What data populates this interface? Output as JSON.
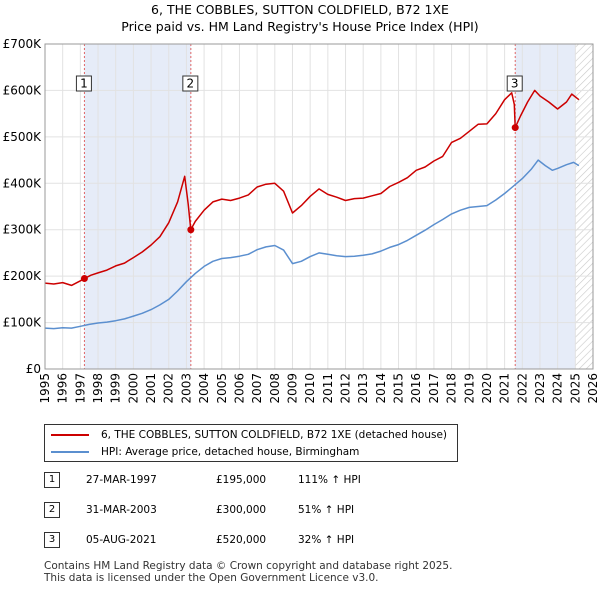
{
  "chart_data": {
    "type": "line",
    "title": "6, THE COBBLES, SUTTON COLDFIELD, B72 1XE",
    "subtitle": "Price paid vs. HM Land Registry's House Price Index (HPI)",
    "x_range": [
      1995,
      2026
    ],
    "ylim": [
      0,
      700000
    ],
    "y_ticks": [
      {
        "value": 0,
        "label": "£0"
      },
      {
        "value": 100000,
        "label": "£100K"
      },
      {
        "value": 200000,
        "label": "£200K"
      },
      {
        "value": 300000,
        "label": "£300K"
      },
      {
        "value": 400000,
        "label": "£400K"
      },
      {
        "value": 500000,
        "label": "£500K"
      },
      {
        "value": 600000,
        "label": "£600K"
      },
      {
        "value": 700000,
        "label": "£700K"
      }
    ],
    "x_ticks": [
      "1995",
      "1996",
      "1997",
      "1998",
      "1999",
      "2000",
      "2001",
      "2002",
      "2003",
      "2004",
      "2005",
      "2006",
      "2007",
      "2008",
      "2009",
      "2010",
      "2011",
      "2012",
      "2013",
      "2014",
      "2015",
      "2016",
      "2017",
      "2018",
      "2019",
      "2020",
      "2021",
      "2022",
      "2023",
      "2024",
      "2025",
      "2026"
    ],
    "grid": true,
    "shaded_periods": [
      {
        "from": 1997.23,
        "to": 2003.25
      },
      {
        "from": 2021.6,
        "to": 2025.0
      }
    ],
    "hatched_from": 2025.0,
    "series": [
      {
        "name": "6, THE COBBLES, SUTTON COLDFIELD, B72 1XE (detached house)",
        "color": "#cc0000",
        "points": [
          [
            1995.0,
            185000
          ],
          [
            1995.5,
            183000
          ],
          [
            1996.0,
            186000
          ],
          [
            1996.5,
            180000
          ],
          [
            1997.0,
            190000
          ],
          [
            1997.23,
            195000
          ],
          [
            1997.6,
            202000
          ],
          [
            1998.0,
            207000
          ],
          [
            1998.5,
            213000
          ],
          [
            1999.0,
            222000
          ],
          [
            1999.5,
            228000
          ],
          [
            2000.0,
            240000
          ],
          [
            2000.5,
            252000
          ],
          [
            2001.0,
            267000
          ],
          [
            2001.5,
            285000
          ],
          [
            2002.0,
            315000
          ],
          [
            2002.5,
            360000
          ],
          [
            2002.9,
            415000
          ],
          [
            2003.1,
            355000
          ],
          [
            2003.25,
            300000
          ],
          [
            2003.5,
            318000
          ],
          [
            2004.0,
            342000
          ],
          [
            2004.5,
            360000
          ],
          [
            2005.0,
            366000
          ],
          [
            2005.5,
            363000
          ],
          [
            2006.0,
            368000
          ],
          [
            2006.5,
            375000
          ],
          [
            2007.0,
            392000
          ],
          [
            2007.5,
            398000
          ],
          [
            2008.0,
            400000
          ],
          [
            2008.5,
            383000
          ],
          [
            2009.0,
            336000
          ],
          [
            2009.5,
            352000
          ],
          [
            2010.0,
            372000
          ],
          [
            2010.5,
            388000
          ],
          [
            2011.0,
            376000
          ],
          [
            2011.5,
            370000
          ],
          [
            2012.0,
            363000
          ],
          [
            2012.5,
            367000
          ],
          [
            2013.0,
            368000
          ],
          [
            2013.5,
            373000
          ],
          [
            2014.0,
            378000
          ],
          [
            2014.5,
            393000
          ],
          [
            2015.0,
            402000
          ],
          [
            2015.5,
            412000
          ],
          [
            2016.0,
            428000
          ],
          [
            2016.5,
            435000
          ],
          [
            2017.0,
            448000
          ],
          [
            2017.5,
            458000
          ],
          [
            2018.0,
            488000
          ],
          [
            2018.5,
            497000
          ],
          [
            2019.0,
            512000
          ],
          [
            2019.5,
            527000
          ],
          [
            2020.0,
            528000
          ],
          [
            2020.5,
            550000
          ],
          [
            2021.0,
            580000
          ],
          [
            2021.4,
            595000
          ],
          [
            2021.55,
            570000
          ],
          [
            2021.6,
            520000
          ],
          [
            2021.9,
            545000
          ],
          [
            2022.3,
            575000
          ],
          [
            2022.7,
            600000
          ],
          [
            2023.0,
            588000
          ],
          [
            2023.5,
            575000
          ],
          [
            2024.0,
            560000
          ],
          [
            2024.5,
            575000
          ],
          [
            2024.8,
            592000
          ],
          [
            2025.2,
            580000
          ]
        ]
      },
      {
        "name": "HPI: Average price, detached house, Birmingham",
        "color": "#5b8fcf",
        "points": [
          [
            1995.0,
            88000
          ],
          [
            1995.5,
            87000
          ],
          [
            1996.0,
            89000
          ],
          [
            1996.5,
            88000
          ],
          [
            1997.0,
            92000
          ],
          [
            1997.5,
            96000
          ],
          [
            1998.0,
            99000
          ],
          [
            1998.5,
            101000
          ],
          [
            1999.0,
            104000
          ],
          [
            1999.5,
            108000
          ],
          [
            2000.0,
            114000
          ],
          [
            2000.5,
            120000
          ],
          [
            2001.0,
            128000
          ],
          [
            2001.5,
            138000
          ],
          [
            2002.0,
            150000
          ],
          [
            2002.5,
            168000
          ],
          [
            2003.0,
            188000
          ],
          [
            2003.5,
            206000
          ],
          [
            2004.0,
            221000
          ],
          [
            2004.5,
            232000
          ],
          [
            2005.0,
            238000
          ],
          [
            2005.5,
            240000
          ],
          [
            2006.0,
            243000
          ],
          [
            2006.5,
            247000
          ],
          [
            2007.0,
            257000
          ],
          [
            2007.5,
            263000
          ],
          [
            2008.0,
            266000
          ],
          [
            2008.5,
            256000
          ],
          [
            2009.0,
            227000
          ],
          [
            2009.5,
            232000
          ],
          [
            2010.0,
            242000
          ],
          [
            2010.5,
            250000
          ],
          [
            2011.0,
            247000
          ],
          [
            2011.5,
            244000
          ],
          [
            2012.0,
            242000
          ],
          [
            2012.5,
            243000
          ],
          [
            2013.0,
            245000
          ],
          [
            2013.5,
            248000
          ],
          [
            2014.0,
            254000
          ],
          [
            2014.5,
            262000
          ],
          [
            2015.0,
            268000
          ],
          [
            2015.5,
            277000
          ],
          [
            2016.0,
            288000
          ],
          [
            2016.5,
            299000
          ],
          [
            2017.0,
            311000
          ],
          [
            2017.5,
            322000
          ],
          [
            2018.0,
            334000
          ],
          [
            2018.5,
            342000
          ],
          [
            2019.0,
            348000
          ],
          [
            2019.5,
            350000
          ],
          [
            2020.0,
            352000
          ],
          [
            2020.5,
            364000
          ],
          [
            2021.0,
            378000
          ],
          [
            2021.5,
            394000
          ],
          [
            2022.0,
            410000
          ],
          [
            2022.5,
            430000
          ],
          [
            2022.9,
            450000
          ],
          [
            2023.3,
            438000
          ],
          [
            2023.7,
            428000
          ],
          [
            2024.0,
            432000
          ],
          [
            2024.5,
            440000
          ],
          [
            2024.9,
            445000
          ],
          [
            2025.2,
            438000
          ]
        ]
      }
    ],
    "markers": [
      {
        "label": "1",
        "date_value": 1997.23,
        "price": 195000
      },
      {
        "label": "2",
        "date_value": 2003.25,
        "price": 300000
      },
      {
        "label": "3",
        "date_value": 2021.6,
        "price": 520000
      }
    ]
  },
  "legend": {
    "property_label": "6, THE COBBLES, SUTTON COLDFIELD, B72 1XE (detached house)",
    "hpi_label": "HPI: Average price, detached house, Birmingham"
  },
  "sales": [
    {
      "num": "1",
      "date": "27-MAR-1997",
      "price": "£195,000",
      "hpi": "111% ↑ HPI"
    },
    {
      "num": "2",
      "date": "31-MAR-2003",
      "price": "£300,000",
      "hpi": "51% ↑ HPI"
    },
    {
      "num": "3",
      "date": "05-AUG-2021",
      "price": "£520,000",
      "hpi": "32% ↑ HPI"
    }
  ],
  "footer": {
    "line1": "Contains HM Land Registry data © Crown copyright and database right 2025.",
    "line2": "This data is licensed under the Open Government Licence v3.0."
  },
  "colors": {
    "property_line": "#cc0000",
    "hpi_line": "#5b8fcf",
    "shade": "#e6ecf8",
    "grid": "#e2e2e2",
    "vline": "#e06666"
  }
}
